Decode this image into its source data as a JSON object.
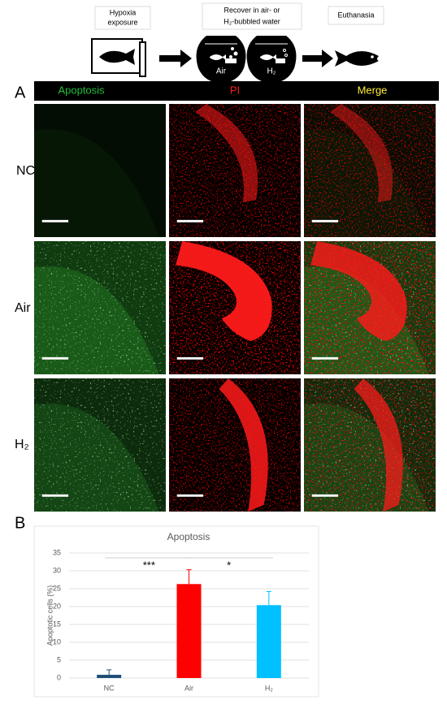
{
  "schematic": {
    "steps": [
      [
        "Hypoxia",
        "exposure"
      ],
      [
        "Recover in air- or",
        "H₂-bubbled water"
      ],
      [
        "Euthanasia"
      ]
    ],
    "bowls": [
      "Air",
      "H₂"
    ]
  },
  "panel_a": {
    "label": "A",
    "columns": [
      "Apoptosis",
      "PI",
      "Merge"
    ],
    "rows": [
      "NC",
      "Air",
      "H₂"
    ]
  },
  "panel_b": {
    "label": "B"
  },
  "chart_data": {
    "type": "bar",
    "title": "Apoptosis",
    "y_label": "Apoptotic cells (%)",
    "categories": [
      "NC",
      "Air",
      "H₂"
    ],
    "values": [
      0.9,
      26.3,
      20.4
    ],
    "errors": [
      1.4,
      4.0,
      3.8
    ],
    "colors": [
      "#1f4e79",
      "#ff0000",
      "#00c0ff"
    ],
    "ylim": [
      0,
      35
    ],
    "yticks": [
      0,
      5,
      10,
      15,
      20,
      25,
      30,
      35
    ],
    "grid": true,
    "annotations": [
      "***",
      "*"
    ]
  }
}
